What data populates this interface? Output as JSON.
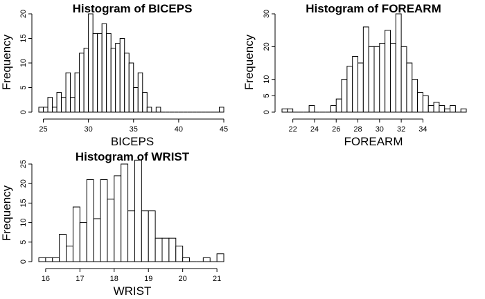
{
  "chart_data": [
    {
      "type": "bar",
      "title": "Histogram of BICEPS",
      "xlabel": "BICEPS",
      "ylabel": "Frequency",
      "bin_width": 0.5,
      "bin_start": 24.5,
      "values": [
        1,
        1,
        3,
        1,
        4,
        3,
        8,
        3,
        8,
        12,
        13,
        20,
        16,
        16,
        18,
        16,
        13,
        14,
        15,
        12,
        10,
        5,
        8,
        4,
        1,
        0,
        1,
        0,
        0,
        0,
        0,
        0,
        0,
        0,
        0,
        0,
        0,
        0,
        0,
        0,
        1
      ],
      "xlim": [
        24.5,
        45
      ],
      "ylim": [
        0,
        20
      ],
      "x_ticks": [
        25,
        30,
        35,
        40,
        45
      ],
      "y_ticks": [
        0,
        5,
        10,
        15,
        20
      ]
    },
    {
      "type": "bar",
      "title": "Histogram of FOREARM",
      "xlabel": "FOREARM",
      "ylabel": "Frequency",
      "bin_width": 0.5,
      "bin_start": 21,
      "values": [
        1,
        1,
        0,
        0,
        0,
        2,
        0,
        0,
        0,
        2,
        4,
        10,
        14,
        17,
        15,
        26,
        20,
        20,
        21,
        25,
        21,
        30,
        20,
        15,
        10,
        6,
        5,
        2,
        3,
        2,
        1,
        2,
        0,
        1
      ],
      "xlim": [
        21,
        38
      ],
      "ylim": [
        0,
        30
      ],
      "x_ticks": [
        22,
        24,
        26,
        28,
        30,
        32,
        34
      ],
      "y_ticks": [
        0,
        5,
        10,
        20,
        30
      ]
    },
    {
      "type": "bar",
      "title": "Histogram of WRIST",
      "xlabel": "WRIST",
      "ylabel": "Frequency",
      "bin_width": 0.2,
      "bin_start": 15.8,
      "values": [
        1,
        1,
        1,
        7,
        4,
        14,
        10,
        21,
        11,
        21,
        16,
        22,
        25,
        13,
        26,
        13,
        13,
        6,
        6,
        6,
        4,
        1,
        0,
        0,
        1,
        0,
        2
      ],
      "xlim": [
        15.8,
        21.2
      ],
      "ylim": [
        0,
        25
      ],
      "x_ticks": [
        16,
        17,
        18,
        19,
        20,
        21
      ],
      "y_ticks": [
        0,
        5,
        10,
        15,
        20,
        25
      ]
    }
  ]
}
